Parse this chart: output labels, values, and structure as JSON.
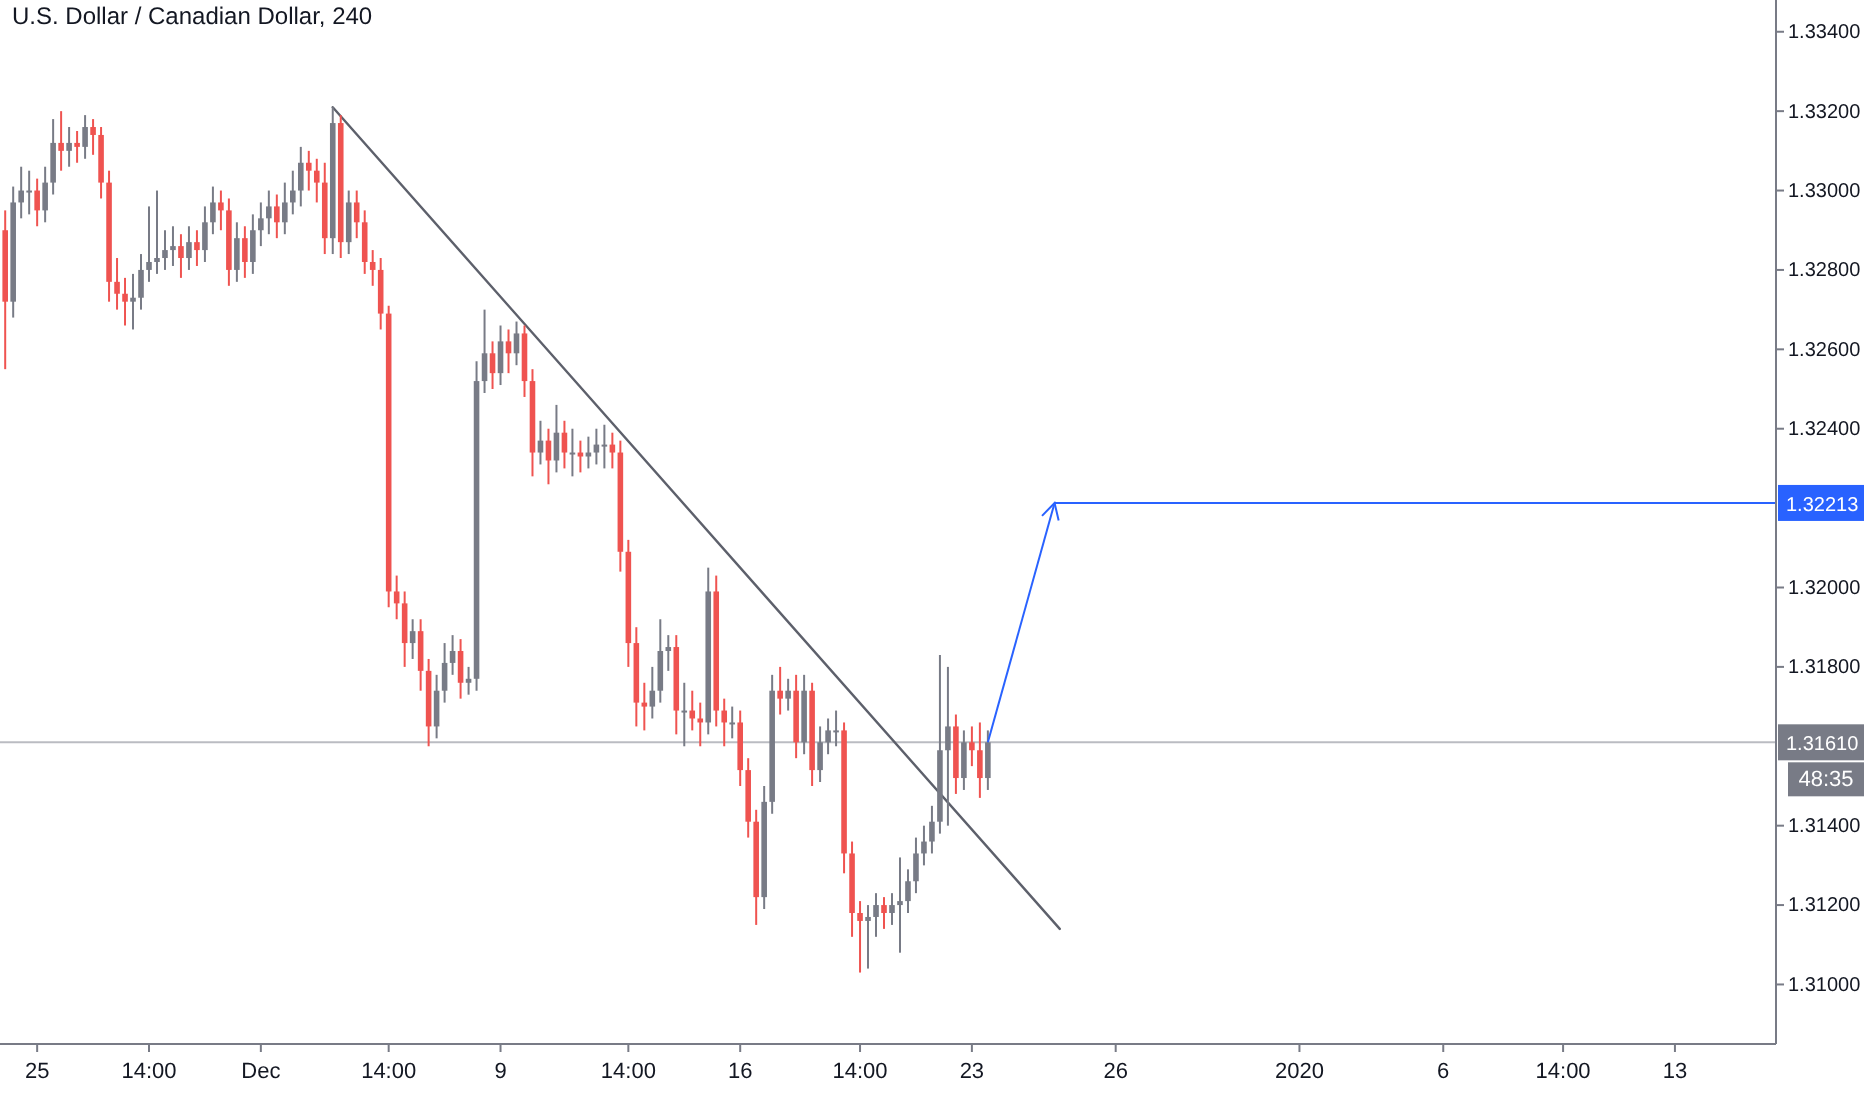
{
  "chart_data": {
    "type": "candlestick",
    "title": "U.S. Dollar / Canadian Dollar, 240",
    "categories": [
      null,
      null,
      null,
      null,
      "25",
      null,
      null,
      null,
      null,
      null,
      null,
      null,
      null,
      null,
      null,
      null,
      null,
      null,
      "14:00",
      null,
      null,
      null,
      null,
      null,
      null,
      null,
      null,
      null,
      null,
      null,
      null,
      null,
      "Dec",
      null,
      null,
      null,
      null,
      null,
      null,
      null,
      null,
      null,
      null,
      null,
      null,
      null,
      null,
      null,
      "14:00",
      null,
      null,
      null,
      null,
      null,
      null,
      null,
      null,
      null,
      null,
      null,
      null,
      null,
      "9",
      null,
      null,
      null,
      null,
      null,
      null,
      null,
      null,
      null,
      null,
      null,
      null,
      null,
      null,
      null,
      "14:00",
      null,
      null,
      null,
      null,
      null,
      null,
      null,
      null,
      null,
      null,
      null,
      null,
      null,
      "16",
      null,
      null,
      null,
      null,
      null,
      null,
      null,
      null,
      null,
      null,
      null,
      null,
      null,
      null,
      "14:00",
      null,
      null,
      null,
      null,
      null,
      null,
      null,
      null,
      null,
      null,
      null,
      null,
      null,
      "23",
      null,
      null,
      null,
      null,
      null,
      null,
      null,
      null,
      null,
      null,
      null,
      null,
      null,
      null,
      null,
      null,
      null,
      "26",
      null,
      null,
      null,
      null,
      null,
      null,
      null,
      null,
      null,
      null,
      null,
      null,
      null,
      null,
      null,
      null,
      null,
      null,
      null,
      null,
      null,
      null,
      "2020",
      null,
      null,
      null,
      null,
      null,
      null,
      null,
      null,
      null,
      null,
      null,
      null,
      null,
      null,
      null,
      null,
      null,
      "6",
      null,
      null,
      null,
      null,
      null,
      null,
      null,
      null,
      null,
      null,
      null,
      null,
      null,
      null,
      "14:00",
      null,
      null,
      null,
      null,
      null,
      null,
      null,
      null,
      null,
      null,
      null,
      null,
      null,
      "13",
      null,
      null,
      null,
      null,
      null,
      null,
      null,
      null,
      null,
      null,
      null,
      null
    ],
    "ohlc": [
      [
        1.329,
        1.3295,
        1.3255,
        1.3272
      ],
      [
        1.3272,
        1.3301,
        1.3268,
        1.3297
      ],
      [
        1.3297,
        1.3306,
        1.3293,
        1.33
      ],
      [
        1.33,
        1.3305,
        1.3294,
        1.33
      ],
      [
        1.33,
        1.3303,
        1.3291,
        1.3295
      ],
      [
        1.3295,
        1.3306,
        1.3292,
        1.3302
      ],
      [
        1.3302,
        1.3318,
        1.3299,
        1.3312
      ],
      [
        1.3312,
        1.332,
        1.3305,
        1.331
      ],
      [
        1.331,
        1.3316,
        1.3306,
        1.3312
      ],
      [
        1.3312,
        1.3315,
        1.3307,
        1.3311
      ],
      [
        1.3311,
        1.3319,
        1.3308,
        1.3316
      ],
      [
        1.3316,
        1.3318,
        1.3309,
        1.3314
      ],
      [
        1.3314,
        1.3316,
        1.3298,
        1.3302
      ],
      [
        1.3302,
        1.3305,
        1.3272,
        1.3277
      ],
      [
        1.3277,
        1.3283,
        1.327,
        1.3274
      ],
      [
        1.3274,
        1.3278,
        1.3266,
        1.3272
      ],
      [
        1.3272,
        1.3279,
        1.3265,
        1.3273
      ],
      [
        1.3273,
        1.3284,
        1.327,
        1.328
      ],
      [
        1.328,
        1.3296,
        1.3277,
        1.3282
      ],
      [
        1.3282,
        1.33,
        1.3279,
        1.3283
      ],
      [
        1.3283,
        1.329,
        1.328,
        1.3285
      ],
      [
        1.3285,
        1.3291,
        1.3281,
        1.3286
      ],
      [
        1.3286,
        1.3289,
        1.3278,
        1.3283
      ],
      [
        1.3283,
        1.3291,
        1.328,
        1.3287
      ],
      [
        1.3287,
        1.329,
        1.3281,
        1.3285
      ],
      [
        1.3285,
        1.3296,
        1.3282,
        1.3292
      ],
      [
        1.3292,
        1.3301,
        1.3289,
        1.3297
      ],
      [
        1.3297,
        1.33,
        1.329,
        1.3295
      ],
      [
        1.3295,
        1.3298,
        1.3276,
        1.328
      ],
      [
        1.328,
        1.3292,
        1.3277,
        1.3288
      ],
      [
        1.3288,
        1.3291,
        1.3278,
        1.3282
      ],
      [
        1.3282,
        1.3294,
        1.3279,
        1.329
      ],
      [
        1.329,
        1.3297,
        1.3286,
        1.3293
      ],
      [
        1.3293,
        1.33,
        1.3289,
        1.3296
      ],
      [
        1.3296,
        1.3299,
        1.3288,
        1.3292
      ],
      [
        1.3292,
        1.3302,
        1.3289,
        1.3297
      ],
      [
        1.3297,
        1.3305,
        1.3294,
        1.33
      ],
      [
        1.33,
        1.3311,
        1.3296,
        1.3307
      ],
      [
        1.3307,
        1.331,
        1.33,
        1.3305
      ],
      [
        1.3305,
        1.3308,
        1.3297,
        1.3302
      ],
      [
        1.3302,
        1.3307,
        1.3284,
        1.3288
      ],
      [
        1.3288,
        1.3321,
        1.3284,
        1.3317
      ],
      [
        1.3317,
        1.3319,
        1.3283,
        1.3287
      ],
      [
        1.3287,
        1.33,
        1.3284,
        1.3297
      ],
      [
        1.3297,
        1.33,
        1.3288,
        1.3292
      ],
      [
        1.3292,
        1.3295,
        1.3279,
        1.3282
      ],
      [
        1.3282,
        1.3285,
        1.3276,
        1.328
      ],
      [
        1.328,
        1.3283,
        1.3265,
        1.3269
      ],
      [
        1.3269,
        1.3271,
        1.3195,
        1.3199
      ],
      [
        1.3199,
        1.3203,
        1.3192,
        1.3196
      ],
      [
        1.3196,
        1.3199,
        1.318,
        1.3186
      ],
      [
        1.3186,
        1.3192,
        1.3182,
        1.3189
      ],
      [
        1.3189,
        1.3192,
        1.3174,
        1.3179
      ],
      [
        1.3179,
        1.3182,
        1.316,
        1.3165
      ],
      [
        1.3165,
        1.3178,
        1.3162,
        1.3174
      ],
      [
        1.3174,
        1.3186,
        1.3171,
        1.3181
      ],
      [
        1.3181,
        1.3188,
        1.3178,
        1.3184
      ],
      [
        1.3184,
        1.3187,
        1.3172,
        1.3176
      ],
      [
        1.3176,
        1.318,
        1.3173,
        1.3177
      ],
      [
        1.3177,
        1.3257,
        1.3174,
        1.3252
      ],
      [
        1.3252,
        1.327,
        1.3249,
        1.3259
      ],
      [
        1.3259,
        1.3262,
        1.325,
        1.3254
      ],
      [
        1.3254,
        1.3266,
        1.3251,
        1.3262
      ],
      [
        1.3262,
        1.3265,
        1.3254,
        1.3259
      ],
      [
        1.3259,
        1.3267,
        1.3256,
        1.3264
      ],
      [
        1.3264,
        1.3266,
        1.3248,
        1.3252
      ],
      [
        1.3252,
        1.3255,
        1.3228,
        1.3234
      ],
      [
        1.3234,
        1.3242,
        1.3231,
        1.3237
      ],
      [
        1.3237,
        1.324,
        1.3226,
        1.3232
      ],
      [
        1.3232,
        1.3246,
        1.3229,
        1.3239
      ],
      [
        1.3239,
        1.3242,
        1.323,
        1.3234
      ],
      [
        1.3234,
        1.324,
        1.3228,
        1.3234
      ],
      [
        1.3234,
        1.3237,
        1.3229,
        1.3233
      ],
      [
        1.3233,
        1.3238,
        1.323,
        1.3234
      ],
      [
        1.3234,
        1.324,
        1.3231,
        1.3236
      ],
      [
        1.3236,
        1.3241,
        1.323,
        1.3236
      ],
      [
        1.3236,
        1.3239,
        1.323,
        1.3234
      ],
      [
        1.3234,
        1.3237,
        1.3204,
        1.3209
      ],
      [
        1.3209,
        1.3212,
        1.318,
        1.3186
      ],
      [
        1.3186,
        1.319,
        1.3165,
        1.3171
      ],
      [
        1.3171,
        1.3176,
        1.3164,
        1.317
      ],
      [
        1.317,
        1.318,
        1.3167,
        1.3174
      ],
      [
        1.3174,
        1.3192,
        1.3171,
        1.3184
      ],
      [
        1.3184,
        1.3188,
        1.3179,
        1.3185
      ],
      [
        1.3185,
        1.3188,
        1.3163,
        1.3169
      ],
      [
        1.3169,
        1.3176,
        1.316,
        1.3169
      ],
      [
        1.3169,
        1.3174,
        1.3164,
        1.3167
      ],
      [
        1.3167,
        1.3171,
        1.316,
        1.3166
      ],
      [
        1.3166,
        1.3205,
        1.3163,
        1.3199
      ],
      [
        1.3199,
        1.3203,
        1.3165,
        1.3169
      ],
      [
        1.3169,
        1.3172,
        1.316,
        1.3166
      ],
      [
        1.3166,
        1.317,
        1.3162,
        1.3166
      ],
      [
        1.3166,
        1.3169,
        1.315,
        1.3154
      ],
      [
        1.3154,
        1.3157,
        1.3137,
        1.3141
      ],
      [
        1.3141,
        1.3144,
        1.3115,
        1.3122
      ],
      [
        1.3122,
        1.315,
        1.3119,
        1.3146
      ],
      [
        1.3146,
        1.3178,
        1.3143,
        1.3174
      ],
      [
        1.3174,
        1.318,
        1.3168,
        1.3172
      ],
      [
        1.3172,
        1.3177,
        1.3169,
        1.3174
      ],
      [
        1.3174,
        1.3178,
        1.3157,
        1.3161
      ],
      [
        1.3161,
        1.3178,
        1.3158,
        1.3174
      ],
      [
        1.3174,
        1.3176,
        1.315,
        1.3154
      ],
      [
        1.3154,
        1.3165,
        1.3151,
        1.3161
      ],
      [
        1.3161,
        1.3167,
        1.3158,
        1.3164
      ],
      [
        1.3164,
        1.3169,
        1.316,
        1.3164
      ],
      [
        1.3164,
        1.3166,
        1.3128,
        1.3133
      ],
      [
        1.3133,
        1.3136,
        1.3112,
        1.3118
      ],
      [
        1.3118,
        1.3121,
        1.3103,
        1.3116
      ],
      [
        1.3116,
        1.312,
        1.3104,
        1.3117
      ],
      [
        1.3117,
        1.3123,
        1.3112,
        1.312
      ],
      [
        1.312,
        1.3122,
        1.3114,
        1.3118
      ],
      [
        1.3118,
        1.3123,
        1.3115,
        1.312
      ],
      [
        1.312,
        1.3132,
        1.3108,
        1.3121
      ],
      [
        1.3121,
        1.3129,
        1.3118,
        1.3126
      ],
      [
        1.3126,
        1.3137,
        1.3123,
        1.3133
      ],
      [
        1.3133,
        1.314,
        1.313,
        1.3136
      ],
      [
        1.3136,
        1.3145,
        1.3133,
        1.3141
      ],
      [
        1.3141,
        1.3183,
        1.3138,
        1.3159
      ],
      [
        1.3159,
        1.318,
        1.314,
        1.3165
      ],
      [
        1.3165,
        1.3168,
        1.3148,
        1.3152
      ],
      [
        1.3152,
        1.3164,
        1.3149,
        1.3161
      ],
      [
        1.3161,
        1.3165,
        1.3155,
        1.3159
      ],
      [
        1.3159,
        1.3166,
        1.3147,
        1.3152
      ],
      [
        1.3152,
        1.3164,
        1.3149,
        1.3161
      ],
      null,
      null,
      null,
      null,
      null,
      null,
      null,
      null,
      null,
      null,
      null,
      null,
      null,
      null,
      null,
      null,
      null,
      null,
      null,
      null,
      null,
      null,
      null,
      null,
      null,
      null,
      null,
      null,
      null,
      null,
      null,
      null,
      null,
      null,
      null,
      null,
      null,
      null,
      null,
      null,
      null,
      null,
      null,
      null,
      null,
      null,
      null,
      null,
      null,
      null,
      null,
      null,
      null,
      null,
      null,
      null,
      null,
      null,
      null,
      null,
      null,
      null,
      null,
      null,
      null,
      null,
      null,
      null,
      null,
      null,
      null,
      null,
      null,
      null,
      null,
      null,
      null,
      null,
      null,
      null,
      null,
      null,
      null,
      null,
      null,
      null,
      null,
      null,
      null,
      null,
      null,
      null,
      null,
      null,
      null,
      null,
      null,
      null
    ],
    "colors": [
      "#ef5350",
      "#787b86",
      "#787b86",
      "#787b86",
      "#ef5350",
      "#787b86",
      "#787b86",
      "#ef5350",
      "#787b86",
      "#ef5350",
      "#787b86",
      "#ef5350",
      "#ef5350",
      "#ef5350",
      "#ef5350",
      "#ef5350",
      "#787b86",
      "#787b86",
      "#787b86",
      "#787b86",
      "#787b86",
      "#787b86",
      "#ef5350",
      "#787b86",
      "#ef5350",
      "#787b86",
      "#787b86",
      "#ef5350",
      "#ef5350",
      "#787b86",
      "#ef5350",
      "#787b86",
      "#787b86",
      "#787b86",
      "#ef5350",
      "#787b86",
      "#787b86",
      "#787b86",
      "#ef5350",
      "#ef5350",
      "#ef5350",
      "#787b86",
      "#ef5350",
      "#787b86",
      "#ef5350",
      "#ef5350",
      "#ef5350",
      "#ef5350",
      "#ef5350",
      "#ef5350",
      "#ef5350",
      "#787b86",
      "#ef5350",
      "#ef5350",
      "#787b86",
      "#787b86",
      "#787b86",
      "#ef5350",
      "#787b86",
      "#787b86",
      "#787b86",
      "#ef5350",
      "#787b86",
      "#ef5350",
      "#787b86",
      "#ef5350",
      "#ef5350",
      "#787b86",
      "#ef5350",
      "#787b86",
      "#ef5350",
      "#787b86",
      "#ef5350",
      "#787b86",
      "#787b86",
      "#787b86",
      "#ef5350",
      "#ef5350",
      "#ef5350",
      "#ef5350",
      "#ef5350",
      "#787b86",
      "#787b86",
      "#787b86",
      "#ef5350",
      "#787b86",
      "#ef5350",
      "#ef5350",
      "#787b86",
      "#ef5350",
      "#ef5350",
      "#787b86",
      "#ef5350",
      "#ef5350",
      "#ef5350",
      "#787b86",
      "#787b86",
      "#ef5350",
      "#787b86",
      "#ef5350",
      "#787b86",
      "#ef5350",
      "#787b86",
      "#787b86",
      "#787b86",
      "#ef5350",
      "#ef5350",
      "#ef5350",
      "#787b86",
      "#787b86",
      "#ef5350",
      "#787b86",
      "#787b86",
      "#787b86",
      "#787b86",
      "#787b86",
      "#787b86",
      "#787b86",
      "#787b86",
      "#ef5350",
      "#787b86",
      "#ef5350",
      "#ef5350",
      "#787b86",
      null,
      null,
      null,
      null,
      null,
      null,
      null,
      null,
      null,
      null,
      null,
      null,
      null,
      null,
      null,
      null,
      null,
      null,
      null,
      null,
      null,
      null,
      null,
      null,
      null,
      null,
      null,
      null,
      null,
      null,
      null,
      null,
      null,
      null,
      null,
      null,
      null,
      null,
      null,
      null,
      null,
      null,
      null,
      null,
      null,
      null,
      null,
      null,
      null,
      null,
      null,
      null,
      null,
      null,
      null,
      null,
      null,
      null,
      null,
      null,
      null,
      null,
      null,
      null,
      null,
      null,
      null,
      null,
      null,
      null,
      null,
      null,
      null,
      null,
      null,
      null,
      null,
      null,
      null,
      null,
      null,
      null,
      null,
      null,
      null,
      null,
      null,
      null,
      null,
      null,
      null,
      null,
      null,
      null,
      null,
      null,
      null,
      null
    ],
    "series": [
      {
        "type": "line",
        "color": "#5d606b",
        "values": [
          null,
          null,
          null,
          null,
          null,
          null,
          null,
          null,
          null,
          null,
          null,
          null,
          null,
          null,
          null,
          null,
          null,
          null,
          null,
          null,
          null,
          null,
          null,
          null,
          null,
          null,
          null,
          null,
          null,
          null,
          null,
          null,
          null,
          null,
          null,
          null,
          null,
          null,
          null,
          null,
          null,
          1.3321,
          null,
          null,
          null,
          null,
          null,
          null,
          null,
          null,
          null,
          null,
          null,
          null,
          null,
          null,
          null,
          null,
          null,
          null,
          null,
          null,
          null,
          null,
          null,
          null,
          null,
          null,
          null,
          null,
          null,
          null,
          null,
          null,
          null,
          null,
          null,
          null,
          null,
          null,
          null,
          null,
          null,
          null,
          null,
          null,
          null,
          null,
          null,
          null,
          null,
          null,
          null,
          null,
          null,
          null,
          null,
          null,
          null,
          null,
          null,
          null,
          null,
          null,
          null,
          null,
          null,
          null,
          null,
          null,
          null,
          null,
          null,
          null,
          null,
          null,
          null,
          null,
          null,
          null,
          null,
          null,
          null,
          null,
          null,
          null,
          null,
          null,
          null,
          null,
          null,
          null,
          1.3114,
          null,
          null,
          null,
          null,
          null,
          null,
          null,
          null,
          null,
          null,
          null,
          null,
          null,
          null,
          null,
          null,
          null,
          null,
          null,
          null,
          null,
          null,
          null,
          null,
          null,
          null,
          null,
          null,
          null,
          null,
          null,
          null,
          null,
          null,
          null,
          null,
          null,
          null,
          null,
          null,
          null,
          null,
          null,
          null,
          null,
          null,
          null,
          null,
          null,
          null,
          null,
          null,
          null,
          null,
          null,
          null,
          null,
          null,
          null,
          null,
          null,
          null,
          null,
          null,
          null,
          null,
          null,
          null,
          null,
          null,
          null,
          null,
          null,
          null,
          null,
          null,
          null,
          null,
          null,
          null,
          null,
          null,
          null,
          null,
          null,
          null,
          null,
          null,
          null
        ]
      }
    ],
    "ylim": [
      1.3085,
      1.3348
    ],
    "yticks": [
      {
        "value": 1.31,
        "label": "1.31000"
      },
      {
        "value": 1.312,
        "label": "1.31200"
      },
      {
        "value": 1.314,
        "label": "1.31400"
      },
      {
        "value": 1.318,
        "label": "1.31800"
      },
      {
        "value": 1.32,
        "label": "1.32000"
      },
      {
        "value": 1.324,
        "label": "1.32400"
      },
      {
        "value": 1.326,
        "label": "1.32600"
      },
      {
        "value": 1.328,
        "label": "1.32800"
      },
      {
        "value": 1.33,
        "label": "1.33000"
      },
      {
        "value": 1.332,
        "label": "1.33200"
      },
      {
        "value": 1.334,
        "label": "1.33400"
      }
    ],
    "ref_lines": [
      {
        "axis": "y",
        "value": 1.32213,
        "label": "1.32213",
        "color": "#2962ff"
      },
      {
        "axis": "y",
        "value": 1.3161,
        "label": "1.31610",
        "color": "#787b86"
      }
    ],
    "annotations": [
      "48:35"
    ]
  }
}
